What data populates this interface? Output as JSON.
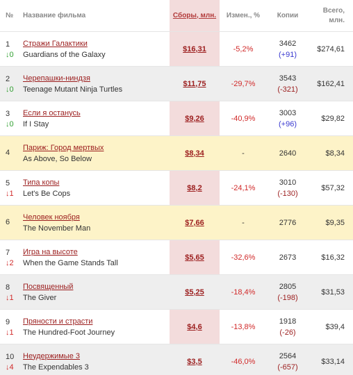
{
  "header": {
    "num": "№",
    "title": "Название фильма",
    "box_office": "Сборы, млн.",
    "change": "Измен., %",
    "copies": "Копии",
    "total": "Всего, млн."
  },
  "rows": [
    {
      "rank": "1",
      "delta": "↓0",
      "title_ru": "Стражи Галактики",
      "title_en": "Guardians of the Galaxy",
      "box_office": "$16,31",
      "change": "-5,2%",
      "copies": "3462",
      "copies_delta": "(+91)",
      "total": "$274,61"
    },
    {
      "rank": "2",
      "delta": "↓0",
      "title_ru": "Черепашки-ниндзя",
      "title_en": "Teenage Mutant Ninja Turtles",
      "box_office": "$11,75",
      "change": "-29,7%",
      "copies": "3543",
      "copies_delta": "(-321)",
      "total": "$162,41"
    },
    {
      "rank": "3",
      "delta": "↓0",
      "title_ru": "Если я останусь",
      "title_en": "If I Stay",
      "box_office": "$9,26",
      "change": "-40,9%",
      "copies": "3003",
      "copies_delta": "(+96)",
      "total": "$29,82"
    },
    {
      "rank": "4",
      "delta": "",
      "title_ru": "Париж: Город мертвых",
      "title_en": "As Above, So Below",
      "box_office": "$8,34",
      "change": "-",
      "copies": "2640",
      "copies_delta": "",
      "total": "$8,34"
    },
    {
      "rank": "5",
      "delta": "↓1",
      "title_ru": "Типа копы",
      "title_en": "Let's Be Cops",
      "box_office": "$8,2",
      "change": "-24,1%",
      "copies": "3010",
      "copies_delta": "(-130)",
      "total": "$57,32"
    },
    {
      "rank": "6",
      "delta": "",
      "title_ru": "Человек ноября",
      "title_en": "The November Man",
      "box_office": "$7,66",
      "change": "-",
      "copies": "2776",
      "copies_delta": "",
      "total": "$9,35"
    },
    {
      "rank": "7",
      "delta": "↓2",
      "title_ru": "Игра на высоте",
      "title_en": "When the Game Stands Tall",
      "box_office": "$5,65",
      "change": "-32,6%",
      "copies": "2673",
      "copies_delta": "",
      "total": "$16,32"
    },
    {
      "rank": "8",
      "delta": "↓1",
      "title_ru": "Посвященный",
      "title_en": "The Giver",
      "box_office": "$5,25",
      "change": "-18,4%",
      "copies": "2805",
      "copies_delta": "(-198)",
      "total": "$31,53"
    },
    {
      "rank": "9",
      "delta": "↓1",
      "title_ru": "Пряности и страсти",
      "title_en": "The Hundred-Foot Journey",
      "box_office": "$4,6",
      "change": "-13,8%",
      "copies": "1918",
      "copies_delta": "(-26)",
      "total": "$39,4"
    },
    {
      "rank": "10",
      "delta": "↓4",
      "title_ru": "Неудержимые 3",
      "title_en": "The Expendables 3",
      "box_office": "$3,5",
      "change": "-46,0%",
      "copies": "2564",
      "copies_delta": "(-657)",
      "total": "$33,14"
    }
  ],
  "colors": {
    "title_link": "#9b1d1d",
    "highlight_column": "#f3dcdc",
    "new_release_row": "#fdf3c8",
    "alternate_row": "#eeeeee",
    "negative_change": "#d12a2a",
    "rank_unchanged": "#2f9f2f",
    "copies_increase": "#3939d0"
  }
}
